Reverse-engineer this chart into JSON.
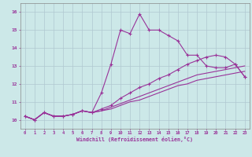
{
  "xlabel": "Windchill (Refroidissement éolien,°C)",
  "xlim": [
    -0.5,
    23.5
  ],
  "ylim": [
    9.5,
    16.5
  ],
  "yticks": [
    10,
    11,
    12,
    13,
    14,
    15,
    16
  ],
  "xticks": [
    0,
    1,
    2,
    3,
    4,
    5,
    6,
    7,
    8,
    9,
    10,
    11,
    12,
    13,
    14,
    15,
    16,
    17,
    18,
    19,
    20,
    21,
    22,
    23
  ],
  "background_color": "#cce8e8",
  "grid_color": "#b0c8d0",
  "line_color": "#993399",
  "line1_x": [
    0,
    1,
    2,
    3,
    4,
    5,
    6,
    7,
    8,
    9,
    10,
    11,
    12,
    13,
    14,
    15,
    16,
    17,
    18,
    19,
    20,
    21,
    22,
    23
  ],
  "line1_y": [
    10.2,
    10.0,
    10.4,
    10.2,
    10.2,
    10.3,
    10.5,
    10.4,
    11.5,
    13.1,
    15.0,
    14.8,
    15.9,
    15.0,
    15.0,
    14.7,
    14.4,
    13.6,
    13.6,
    13.0,
    12.9,
    12.9,
    13.1,
    12.4
  ],
  "line2_x": [
    0,
    1,
    2,
    3,
    4,
    5,
    6,
    7,
    8,
    9,
    10,
    11,
    12,
    13,
    14,
    15,
    16,
    17,
    18,
    19,
    20,
    21,
    22,
    23
  ],
  "line2_y": [
    10.2,
    10.0,
    10.4,
    10.2,
    10.2,
    10.3,
    10.5,
    10.4,
    10.6,
    10.8,
    11.2,
    11.5,
    11.8,
    12.0,
    12.3,
    12.5,
    12.8,
    13.1,
    13.3,
    13.5,
    13.6,
    13.5,
    13.1,
    12.4
  ],
  "line3_x": [
    0,
    1,
    2,
    3,
    4,
    5,
    6,
    7,
    8,
    9,
    10,
    11,
    12,
    13,
    14,
    15,
    16,
    17,
    18,
    19,
    20,
    21,
    22,
    23
  ],
  "line3_y": [
    10.2,
    10.0,
    10.4,
    10.2,
    10.2,
    10.3,
    10.5,
    10.4,
    10.5,
    10.7,
    10.9,
    11.1,
    11.3,
    11.5,
    11.7,
    11.9,
    12.1,
    12.3,
    12.5,
    12.6,
    12.7,
    12.8,
    12.9,
    13.0
  ],
  "line4_x": [
    0,
    1,
    2,
    3,
    4,
    5,
    6,
    7,
    8,
    9,
    10,
    11,
    12,
    13,
    14,
    15,
    16,
    17,
    18,
    19,
    20,
    21,
    22,
    23
  ],
  "line4_y": [
    10.2,
    10.0,
    10.4,
    10.2,
    10.2,
    10.3,
    10.5,
    10.4,
    10.5,
    10.6,
    10.8,
    11.0,
    11.1,
    11.3,
    11.5,
    11.7,
    11.9,
    12.0,
    12.2,
    12.3,
    12.4,
    12.5,
    12.6,
    12.7
  ]
}
